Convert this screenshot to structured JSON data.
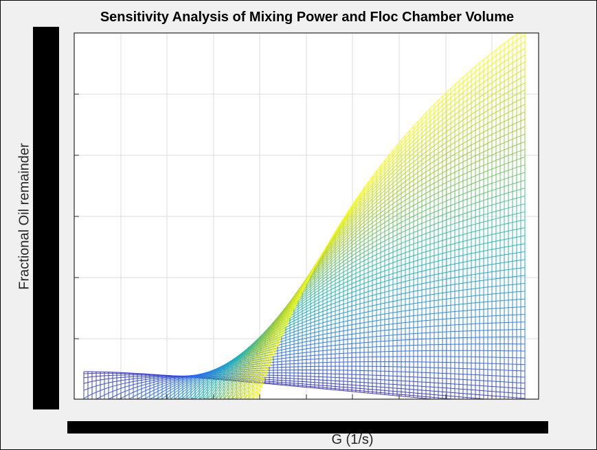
{
  "chart_data": {
    "type": "line",
    "title": "Sensitivity Analysis of Mixing Power and Floc Chamber Volume",
    "xlabel": "G (1/s)",
    "ylabel": "Fractional Oil remainder",
    "grid": true,
    "legend": "none",
    "colormap": "parula",
    "series_count": 55,
    "x_tick_labels": [],
    "y_tick_labels": [],
    "colors": {
      "parula_low": "#3e26a8",
      "parula_mid_low": "#2e6fef",
      "parula_mid": "#1fb5b6",
      "parula_high": "#9fc93a",
      "parula_top": "#f9fb15",
      "axes_background": "#ffffff",
      "figure_background": "#f0f0f0",
      "grid": "#dcdcdc",
      "redaction": "#000000"
    }
  }
}
